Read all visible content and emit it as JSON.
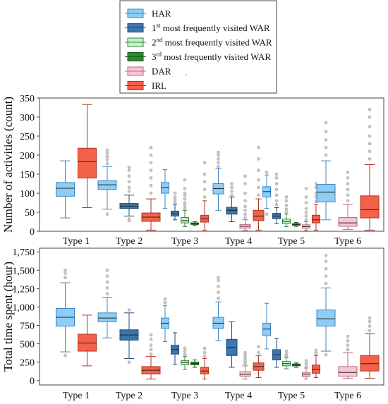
{
  "legend": {
    "items": [
      {
        "key": "HAR",
        "base": "",
        "sup": "",
        "rest": "HAR",
        "fill": "#8ecdf4",
        "stroke": "#3d87c4"
      },
      {
        "key": "W1",
        "base": "1",
        "sup": "st",
        "rest": " most frequently visited WAR",
        "fill": "#3b76ad",
        "stroke": "#1f4a78"
      },
      {
        "key": "W2",
        "base": "2",
        "sup": "nd",
        "rest": " most frequently visited WAR",
        "fill": "#c9edc6",
        "stroke": "#2f8a3a"
      },
      {
        "key": "W3",
        "base": "3",
        "sup": "rd",
        "rest": " most frequently visited WAR",
        "fill": "#2c8a2e",
        "stroke": "#145a16"
      },
      {
        "key": "DAR",
        "base": "",
        "sup": "",
        "rest": "DAR",
        "fill": "#f8c6d3",
        "stroke": "#b46a80"
      },
      {
        "key": "IRL",
        "base": "",
        "sup": "",
        "rest": "IRL",
        "fill": "#f4614a",
        "stroke": "#b23322"
      }
    ]
  },
  "chart_data": [
    {
      "type": "box",
      "ylabel": "Number of activities (count)",
      "ylim": [
        0,
        350
      ],
      "yticks": [
        0,
        50,
        100,
        150,
        200,
        250,
        300,
        350
      ],
      "categories": [
        "Type 1",
        "Type 2",
        "Type 3",
        "Type 4",
        "Type 5",
        "Type 6"
      ],
      "groups": [
        {
          "category": "Type 1",
          "boxes": [
            {
              "series": "HAR",
              "whislo": 35,
              "q1": 92,
              "med": 113,
              "q3": 128,
              "whishi": 185,
              "outliers": []
            },
            {
              "series": "IRL",
              "whislo": 62,
              "q1": 140,
              "med": 183,
              "q3": 218,
              "whishi": 333,
              "outliers": []
            }
          ]
        },
        {
          "category": "Type 2",
          "boxes": [
            {
              "series": "HAR",
              "whislo": 58,
              "q1": 110,
              "med": 122,
              "q3": 133,
              "whishi": 170,
              "outliers": [
                45,
                178,
                188,
                196,
                205,
                213
              ]
            },
            {
              "series": "W1",
              "whislo": 40,
              "q1": 60,
              "med": 66,
              "q3": 73,
              "whishi": 95,
              "outliers": [
                28,
                32,
                105,
                115,
                130,
                145,
                160,
                168
              ]
            },
            {
              "series": "IRL",
              "whislo": 3,
              "q1": 26,
              "med": 37,
              "q3": 48,
              "whishi": 85,
              "outliers": [
                100,
                120,
                140,
                160,
                180,
                200,
                220
              ]
            }
          ]
        },
        {
          "category": "Type 3",
          "boxes": [
            {
              "series": "HAR",
              "whislo": 60,
              "q1": 100,
              "med": 115,
              "q3": 128,
              "whishi": 162,
              "outliers": []
            },
            {
              "series": "W1",
              "whislo": 30,
              "q1": 40,
              "med": 46,
              "q3": 53,
              "whishi": 70,
              "outliers": [
                75,
                82,
                90,
                100
              ]
            },
            {
              "series": "W2",
              "whislo": 12,
              "q1": 22,
              "med": 28,
              "q3": 36,
              "whishi": 55,
              "outliers": [
                60,
                68,
                75,
                85,
                95,
                100,
                112,
                135
              ]
            },
            {
              "series": "W3",
              "whislo": 16,
              "q1": 18,
              "med": 20,
              "q3": 22,
              "whishi": 25,
              "outliers": []
            },
            {
              "series": "IRL",
              "whislo": 3,
              "q1": 24,
              "med": 33,
              "q3": 42,
              "whishi": 80,
              "outliers": [
                90,
                110,
                130,
                150,
                180
              ]
            }
          ]
        },
        {
          "category": "Type 4",
          "boxes": [
            {
              "series": "HAR",
              "whislo": 55,
              "q1": 98,
              "med": 112,
              "q3": 125,
              "whishi": 165,
              "outliers": [
                170,
                180,
                190,
                200,
                207
              ]
            },
            {
              "series": "W1",
              "whislo": 25,
              "q1": 45,
              "med": 55,
              "q3": 63,
              "whishi": 90,
              "outliers": [
                95,
                105,
                115,
                125
              ]
            },
            {
              "series": "DAR",
              "whislo": 2,
              "q1": 8,
              "med": 13,
              "q3": 18,
              "whishi": 30,
              "outliers": [
                35,
                45,
                55,
                65,
                80,
                100,
                125,
                145
              ]
            },
            {
              "series": "IRL",
              "whislo": 3,
              "q1": 28,
              "med": 40,
              "q3": 55,
              "whishi": 85,
              "outliers": [
                95,
                115,
                135,
                160,
                190,
                220
              ]
            }
          ]
        },
        {
          "category": "Type 5",
          "boxes": [
            {
              "series": "HAR",
              "whislo": 60,
              "q1": 90,
              "med": 104,
              "q3": 117,
              "whishi": 148,
              "outliers": [
                45,
                155
              ]
            },
            {
              "series": "W1",
              "whislo": 20,
              "q1": 33,
              "med": 40,
              "q3": 47,
              "whishi": 62,
              "outliers": [
                70,
                80,
                95,
                110,
                125,
                140,
                150
              ]
            },
            {
              "series": "W2",
              "whislo": 12,
              "q1": 20,
              "med": 26,
              "q3": 32,
              "whishi": 45,
              "outliers": [
                50,
                58,
                68,
                80,
                90
              ]
            },
            {
              "series": "W3",
              "whislo": 13,
              "q1": 16,
              "med": 18,
              "q3": 20,
              "whishi": 23,
              "outliers": []
            },
            {
              "series": "DAR",
              "whislo": 2,
              "q1": 8,
              "med": 12,
              "q3": 17,
              "whishi": 25,
              "outliers": [
                30,
                40,
                50,
                60,
                75,
                90,
                112
              ]
            },
            {
              "series": "IRL",
              "whislo": 3,
              "q1": 22,
              "med": 30,
              "q3": 42,
              "whishi": 70,
              "outliers": [
                78,
                90,
                100,
                115,
                125
              ]
            }
          ]
        },
        {
          "category": "Type 6",
          "boxes": [
            {
              "series": "HAR",
              "whislo": 30,
              "q1": 77,
              "med": 103,
              "q3": 123,
              "whishi": 185,
              "outliers": [
                200,
                220,
                240,
                262,
                285
              ]
            },
            {
              "series": "DAR",
              "whislo": 5,
              "q1": 13,
              "med": 22,
              "q3": 36,
              "whishi": 70,
              "outliers": [
                80,
                95,
                110,
                125,
                140,
                155
              ]
            },
            {
              "series": "IRL",
              "whislo": 3,
              "q1": 35,
              "med": 57,
              "q3": 93,
              "whishi": 175,
              "outliers": [
                190,
                210,
                230,
                250,
                275,
                300,
                320
              ]
            }
          ]
        }
      ]
    },
    {
      "type": "box",
      "ylabel": "Total time spent (hour)",
      "ylim": [
        -60,
        1800
      ],
      "yticks": [
        0,
        250,
        500,
        750,
        1000,
        1250,
        1500,
        1750
      ],
      "yticklabels": [
        "0",
        "250",
        "500",
        "750",
        "1,000",
        "1,250",
        "1,500",
        "1,750"
      ],
      "categories": [
        "Type 1",
        "Type 2",
        "Type 3",
        "Type 4",
        "Type 5",
        "Type 6"
      ],
      "groups": [
        {
          "category": "Type 1",
          "boxes": [
            {
              "series": "HAR",
              "whislo": 390,
              "q1": 740,
              "med": 860,
              "q3": 980,
              "whishi": 1330,
              "outliers": [
                340,
                1400,
                1460,
                1500
              ]
            },
            {
              "series": "IRL",
              "whislo": 200,
              "q1": 400,
              "med": 510,
              "q3": 630,
              "whishi": 890,
              "outliers": []
            }
          ]
        },
        {
          "category": "Type 2",
          "boxes": [
            {
              "series": "HAR",
              "whislo": 580,
              "q1": 800,
              "med": 850,
              "q3": 920,
              "whishi": 1130,
              "outliers": [
                1180,
                1260,
                1340,
                1420,
                1500
              ]
            },
            {
              "series": "W1",
              "whislo": 300,
              "q1": 550,
              "med": 620,
              "q3": 690,
              "whishi": 920,
              "outliers": [
                250,
                960
              ]
            },
            {
              "series": "IRL",
              "whislo": 20,
              "q1": 90,
              "med": 140,
              "q3": 190,
              "whishi": 330,
              "outliers": [
                360,
                420,
                480,
                560,
                620
              ]
            }
          ]
        },
        {
          "category": "Type 3",
          "boxes": [
            {
              "series": "HAR",
              "whislo": 530,
              "q1": 710,
              "med": 780,
              "q3": 850,
              "whishi": 1020,
              "outliers": [
                1060,
                1110
              ]
            },
            {
              "series": "W1",
              "whislo": 220,
              "q1": 360,
              "med": 420,
              "q3": 480,
              "whishi": 650,
              "outliers": []
            },
            {
              "series": "W2",
              "whislo": 150,
              "q1": 215,
              "med": 245,
              "q3": 270,
              "whishi": 330,
              "outliers": [
                360,
                400,
                440
              ]
            },
            {
              "series": "W3",
              "whislo": 180,
              "q1": 215,
              "med": 230,
              "q3": 250,
              "whishi": 280,
              "outliers": []
            },
            {
              "series": "IRL",
              "whislo": 20,
              "q1": 90,
              "med": 130,
              "q3": 180,
              "whishi": 300,
              "outliers": [
                330,
                380,
                440
              ]
            }
          ]
        },
        {
          "category": "Type 4",
          "boxes": [
            {
              "series": "HAR",
              "whislo": 540,
              "q1": 710,
              "med": 780,
              "q3": 860,
              "whishi": 1070,
              "outliers": [
                1120,
                1200,
                1280,
                1360,
                1400
              ]
            },
            {
              "series": "W1",
              "whislo": 180,
              "q1": 340,
              "med": 450,
              "q3": 560,
              "whishi": 800,
              "outliers": []
            },
            {
              "series": "DAR",
              "whislo": 20,
              "q1": 60,
              "med": 85,
              "q3": 120,
              "whishi": 200,
              "outliers": [
                220,
                250,
                280,
                310,
                340,
                380
              ]
            },
            {
              "series": "IRL",
              "whislo": 40,
              "q1": 140,
              "med": 190,
              "q3": 240,
              "whishi": 340,
              "outliers": [
                380,
                460
              ]
            }
          ]
        },
        {
          "category": "Type 5",
          "boxes": [
            {
              "series": "HAR",
              "whislo": 430,
              "q1": 610,
              "med": 700,
              "q3": 780,
              "whishi": 1050,
              "outliers": []
            },
            {
              "series": "W1",
              "whislo": 180,
              "q1": 280,
              "med": 350,
              "q3": 420,
              "whishi": 570,
              "outliers": []
            },
            {
              "series": "W2",
              "whislo": 160,
              "q1": 200,
              "med": 230,
              "q3": 260,
              "whishi": 310,
              "outliers": [
                330,
                360,
                400
              ]
            },
            {
              "series": "W3",
              "whislo": 180,
              "q1": 200,
              "med": 215,
              "q3": 225,
              "whishi": 240,
              "outliers": []
            },
            {
              "series": "DAR",
              "whislo": 20,
              "q1": 55,
              "med": 85,
              "q3": 110,
              "whishi": 170,
              "outliers": [
                190,
                230,
                270
              ]
            },
            {
              "series": "IRL",
              "whislo": 40,
              "q1": 100,
              "med": 150,
              "q3": 210,
              "whishi": 340,
              "outliers": [
                370,
                410
              ]
            }
          ]
        },
        {
          "category": "Type 6",
          "boxes": [
            {
              "series": "HAR",
              "whislo": 400,
              "q1": 740,
              "med": 840,
              "q3": 960,
              "whishi": 1260,
              "outliers": [
                350,
                1320,
                1420,
                1520,
                1620,
                1700
              ]
            },
            {
              "series": "DAR",
              "whislo": 30,
              "q1": 60,
              "med": 110,
              "q3": 190,
              "whishi": 380,
              "outliers": [
                420,
                480,
                540,
                600
              ]
            },
            {
              "series": "IRL",
              "whislo": 30,
              "q1": 130,
              "med": 230,
              "q3": 340,
              "whishi": 640,
              "outliers": [
                680,
                740,
                800,
                850
              ]
            }
          ]
        }
      ]
    }
  ]
}
